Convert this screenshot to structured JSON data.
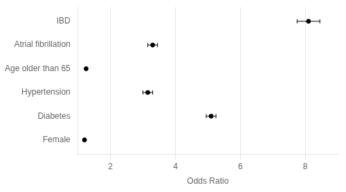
{
  "chart_data": {
    "type": "scatter",
    "categories": [
      "IBD",
      "Atrial fibrillation",
      "Age older than 65",
      "Hypertension",
      "Diabetes",
      "Female"
    ],
    "values": [
      8.1,
      3.3,
      1.25,
      3.15,
      5.1,
      1.2
    ],
    "ci_lower": [
      7.75,
      3.15,
      1.24,
      3.0,
      4.95,
      1.18
    ],
    "ci_upper": [
      8.45,
      3.45,
      1.26,
      3.3,
      5.25,
      1.22
    ],
    "xlabel": "Odds Ratio",
    "xlim": [
      1,
      9
    ],
    "xticks": [
      2,
      4,
      6,
      8
    ],
    "color": "#000000",
    "grid": "x"
  }
}
